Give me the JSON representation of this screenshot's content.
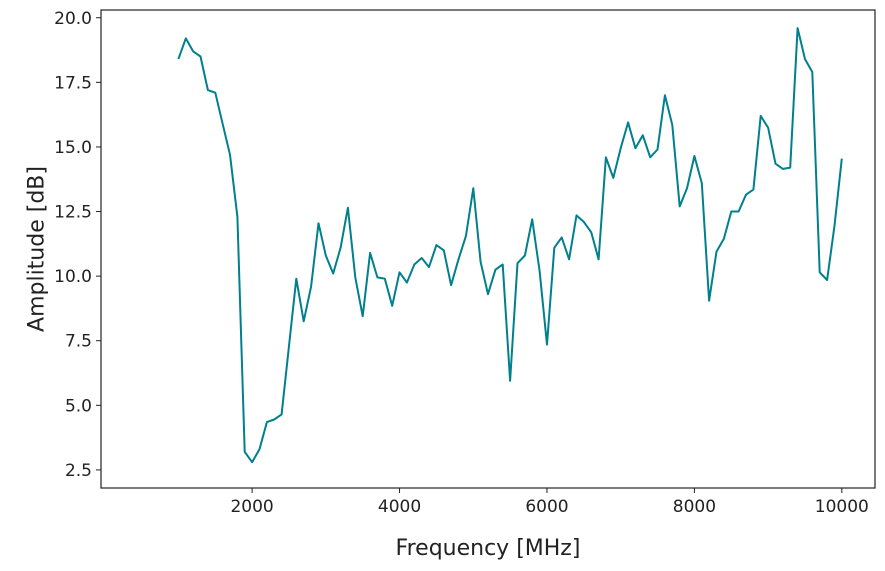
{
  "chart_data": {
    "type": "line",
    "xlabel": "Frequency [MHz]",
    "ylabel": "Amplitude [dB]",
    "xlim": [
      -50,
      10450
    ],
    "ylim": [
      1.8,
      20.3
    ],
    "xticks": [
      2000,
      4000,
      6000,
      8000,
      10000
    ],
    "xtick_labels": [
      "2000",
      "4000",
      "6000",
      "8000",
      "10000"
    ],
    "yticks": [
      2.5,
      5.0,
      7.5,
      10.0,
      12.5,
      15.0,
      17.5,
      20.0
    ],
    "ytick_labels": [
      "2.5",
      "5.0",
      "7.5",
      "10.0",
      "12.5",
      "15.0",
      "17.5",
      "20.0"
    ],
    "grid": false,
    "series": [
      {
        "color": "#00808c",
        "x": [
          1000,
          1100,
          1200,
          1300,
          1400,
          1500,
          1600,
          1700,
          1800,
          1900,
          2000,
          2100,
          2200,
          2300,
          2400,
          2500,
          2600,
          2700,
          2800,
          2900,
          3000,
          3100,
          3200,
          3300,
          3400,
          3500,
          3600,
          3700,
          3800,
          3900,
          4000,
          4100,
          4200,
          4300,
          4400,
          4500,
          4600,
          4700,
          4800,
          4900,
          5000,
          5100,
          5200,
          5300,
          5400,
          5500,
          5600,
          5700,
          5800,
          5900,
          6000,
          6100,
          6200,
          6300,
          6400,
          6500,
          6600,
          6700,
          6800,
          6900,
          7000,
          7100,
          7200,
          7300,
          7400,
          7500,
          7600,
          7700,
          7800,
          7900,
          8000,
          8100,
          8200,
          8300,
          8400,
          8500,
          8600,
          8700,
          8800,
          8900,
          9000,
          9100,
          9200,
          9300,
          9400,
          9500,
          9600,
          9700,
          9800,
          9900,
          10000
        ],
        "y": [
          18.4,
          19.2,
          18.7,
          18.5,
          17.2,
          17.1,
          15.9,
          14.7,
          12.3,
          3.2,
          2.8,
          3.3,
          4.35,
          4.45,
          4.65,
          7.3,
          9.9,
          8.25,
          9.6,
          12.05,
          10.8,
          10.1,
          11.1,
          12.65,
          9.95,
          8.45,
          10.9,
          9.95,
          9.9,
          8.85,
          10.15,
          9.75,
          10.45,
          10.7,
          10.35,
          11.2,
          11.0,
          9.65,
          10.65,
          11.55,
          13.4,
          10.55,
          9.3,
          10.25,
          10.45,
          5.95,
          10.5,
          10.8,
          12.2,
          10.2,
          7.35,
          11.1,
          11.5,
          10.65,
          12.35,
          12.1,
          11.7,
          10.65,
          14.6,
          13.8,
          14.95,
          15.95,
          14.95,
          15.45,
          14.6,
          14.9,
          17.0,
          15.85,
          12.7,
          13.4,
          14.65,
          13.6,
          9.05,
          10.95,
          11.45,
          12.5,
          12.5,
          13.15,
          13.35,
          16.2,
          15.75,
          14.35,
          14.15,
          14.2,
          19.6,
          18.4,
          17.9,
          10.15,
          9.85,
          11.95,
          14.55
        ]
      }
    ]
  }
}
